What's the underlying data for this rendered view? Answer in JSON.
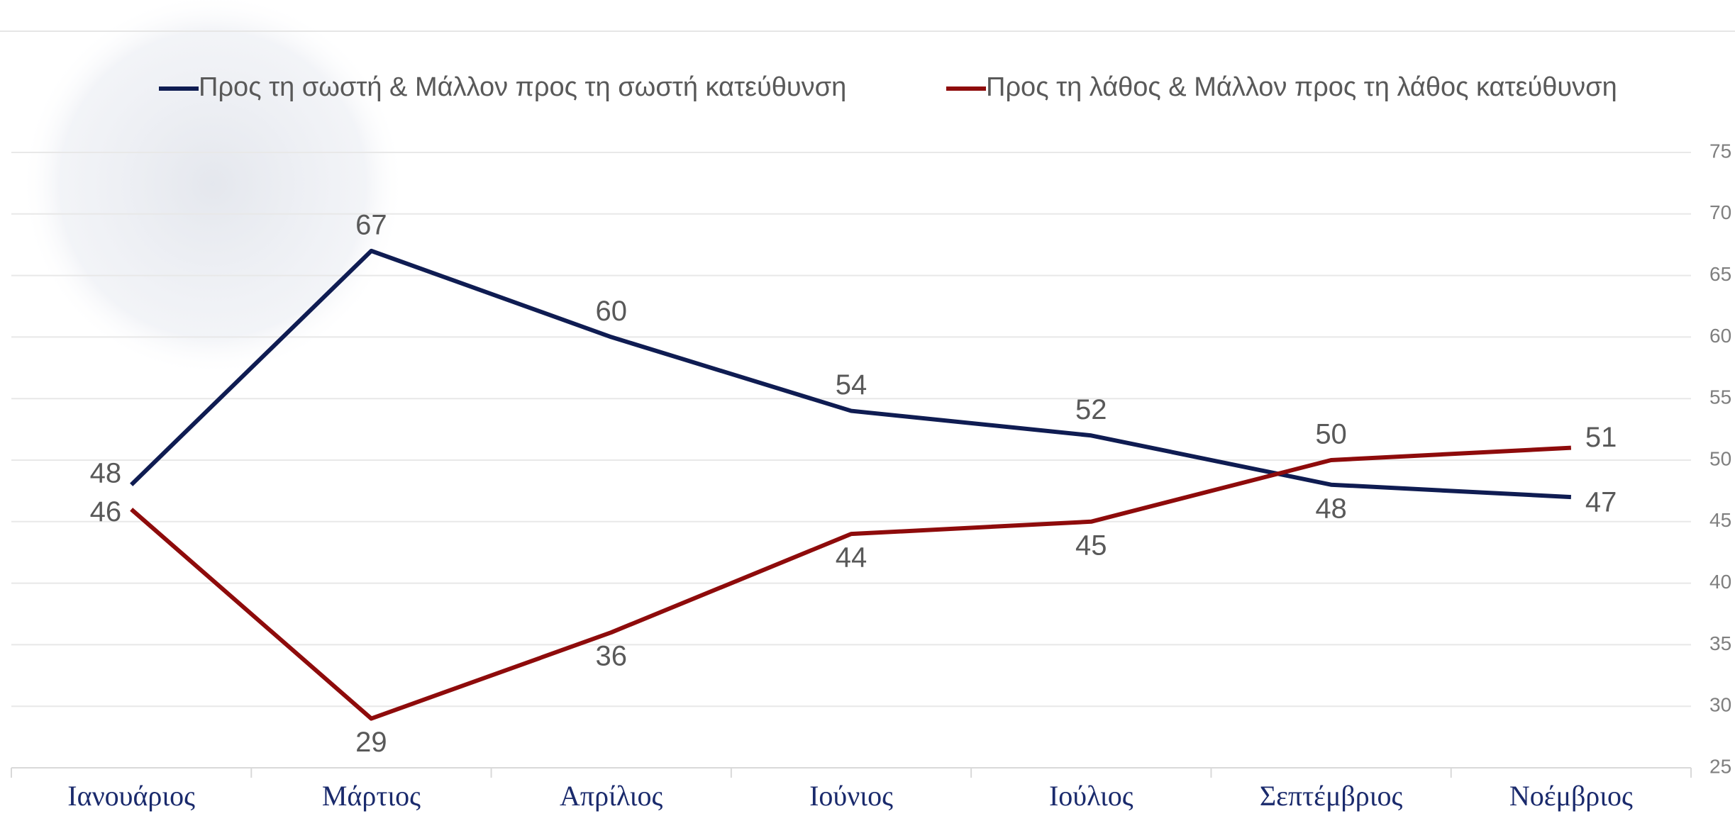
{
  "chart_data": {
    "type": "line",
    "categories": [
      "Ιανουάριος",
      "Μάρτιος",
      "Απρίλιος",
      "Ιούνιος",
      "Ιούλιος",
      "Σεπτέμβριος",
      "Νοέμβριος"
    ],
    "series": [
      {
        "name": "Προς τη σωστή & Μάλλον προς τη σωστή κατεύθυνση",
        "color": "#0f1c52",
        "values": [
          48,
          67,
          60,
          54,
          52,
          48,
          47
        ]
      },
      {
        "name": "Προς τη λάθος & Μάλλον προς τη λάθος κατεύθυνση",
        "color": "#8e0b0b",
        "values": [
          46,
          29,
          36,
          44,
          45,
          50,
          51
        ]
      }
    ],
    "ylim": [
      25,
      75
    ],
    "yticks": [
      25,
      30,
      35,
      40,
      45,
      50,
      55,
      60,
      65,
      70,
      75
    ],
    "grid": true,
    "y_axis_side": "right"
  }
}
